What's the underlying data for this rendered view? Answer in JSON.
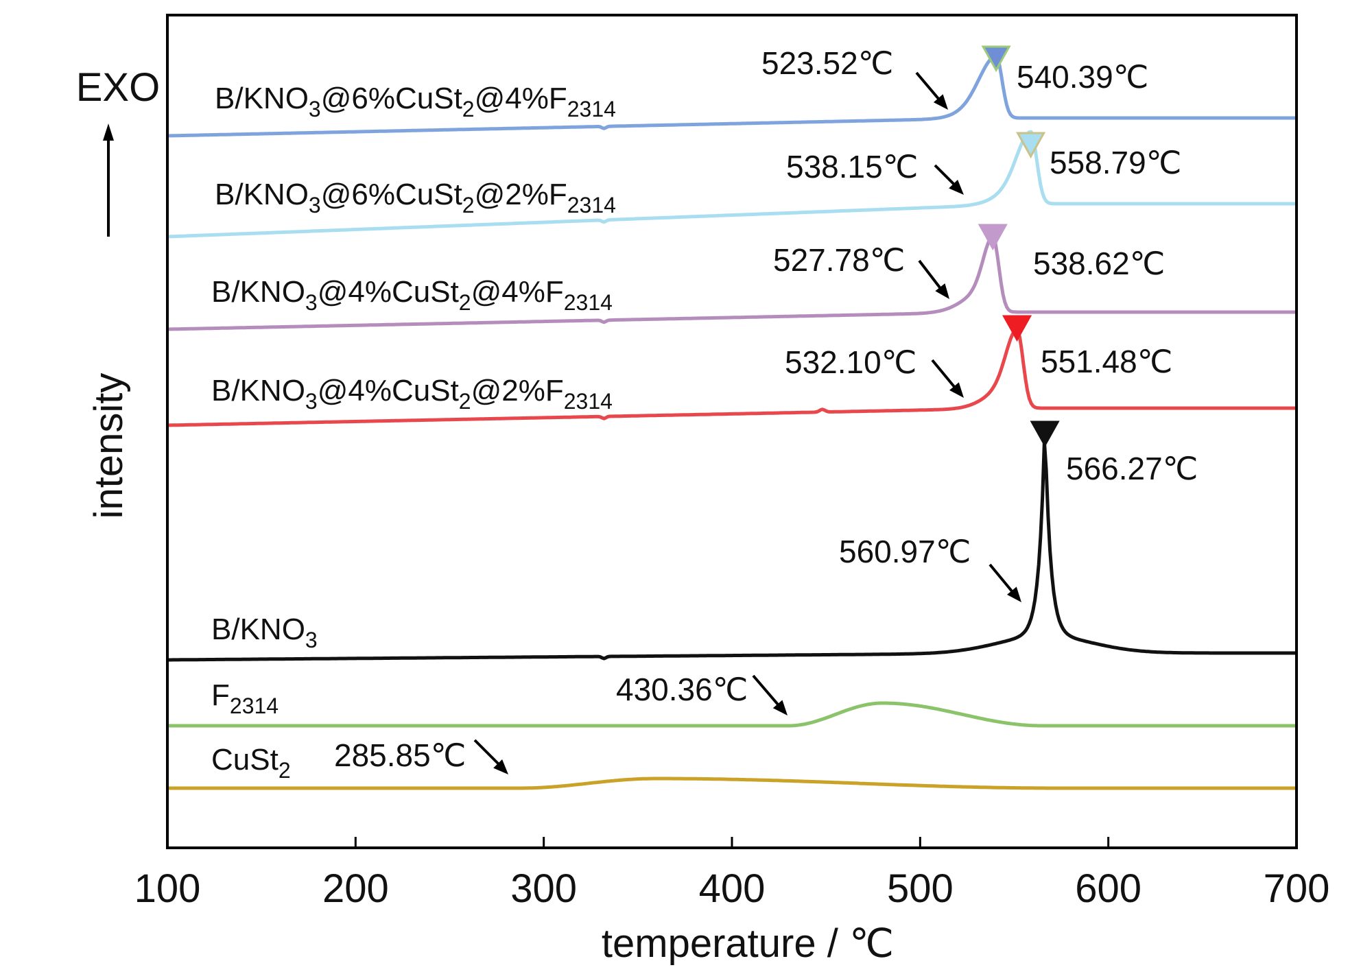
{
  "chart_data": {
    "type": "line",
    "xlabel": "temperature / ℃",
    "ylabel": "intensity",
    "exo_label": "EXO",
    "xlim": [
      100,
      700
    ],
    "xticks": [
      100,
      200,
      300,
      400,
      500,
      600,
      700
    ],
    "grid": false,
    "series": [
      {
        "name": "B/KNO3@6%CuSt2@4%F2314",
        "label": {
          "main": "B/KNO",
          "sub1": "3",
          "mid": "@6%CuSt",
          "sub2": "2",
          "mid2": "@4%F",
          "sub3": "2314"
        },
        "color": "#7FA3DD",
        "onset": "523.52℃",
        "peak": "540.39℃",
        "peak_x": 540.39,
        "marker_color": "#6E8FD6",
        "marker_outline": "#9CCB7A"
      },
      {
        "name": "B/KNO3@6%CuSt2@2%F2314",
        "label": {
          "main": "B/KNO",
          "sub1": "3",
          "mid": "@6%CuSt",
          "sub2": "2",
          "mid2": "@2%F",
          "sub3": "2314"
        },
        "color": "#A9DDF0",
        "onset": "538.15℃",
        "peak": "558.79℃",
        "peak_x": 558.79,
        "marker_color": "#A9DDF0",
        "marker_outline": "#C9C28A"
      },
      {
        "name": "B/KNO3@4%CuSt2@4%F2314",
        "label": {
          "main": "B/KNO",
          "sub1": "3",
          "mid": "@4%CuSt",
          "sub2": "2",
          "mid2": "@4%F",
          "sub3": "2314"
        },
        "color": "#B48DBD",
        "onset": "527.78℃",
        "peak": "538.62℃",
        "peak_x": 538.62,
        "marker_color": "#C29BCC",
        "marker_outline": "#C29BCC"
      },
      {
        "name": "B/KNO3@4%CuSt2@2%F2314",
        "label": {
          "main": "B/KNO",
          "sub1": "3",
          "mid": "@4%CuSt",
          "sub2": "2",
          "mid2": "@2%F",
          "sub3": "2314"
        },
        "color": "#E8474C",
        "onset": "532.10℃",
        "peak": "551.48℃",
        "peak_x": 551.48,
        "marker_color": "#EE1D23",
        "marker_outline": "#EE1D23"
      },
      {
        "name": "B/KNO3",
        "label": {
          "main": "B/KNO",
          "sub1": "3"
        },
        "color": "#111111",
        "onset": "560.97℃",
        "peak": "566.27℃",
        "peak_x": 566.27,
        "marker_color": "#111111",
        "marker_outline": "#111111"
      },
      {
        "name": "F2314",
        "label": {
          "main": "F",
          "sub1": "2314"
        },
        "color": "#8BC36A",
        "onset": "430.36℃"
      },
      {
        "name": "CuSt2",
        "label": {
          "main": "CuSt",
          "sub1": "2"
        },
        "color": "#C9A227",
        "onset": "285.85℃"
      }
    ]
  }
}
